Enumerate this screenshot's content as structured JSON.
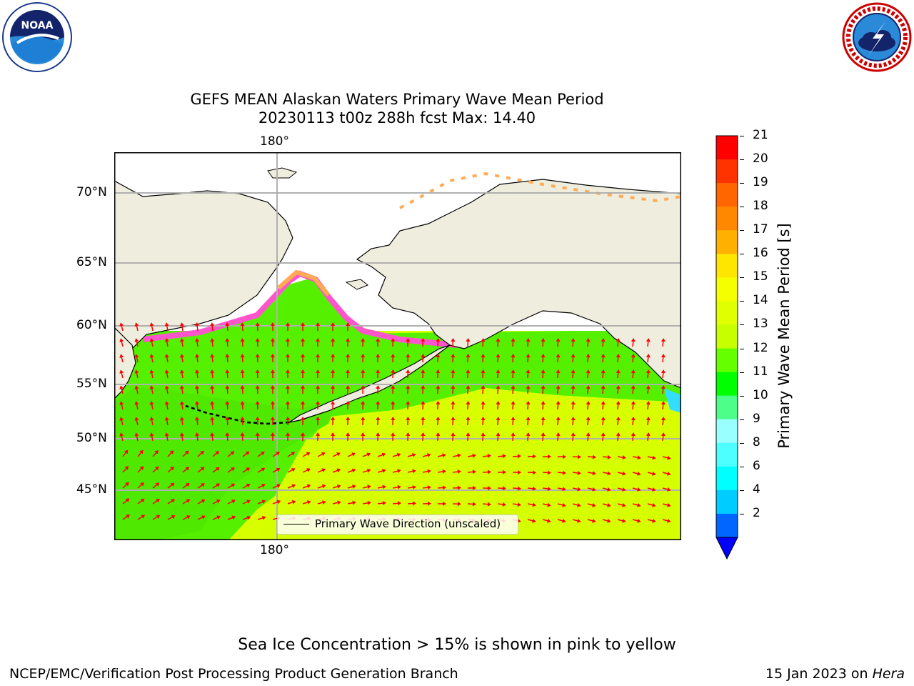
{
  "header": {
    "title_line1": "GEFS MEAN Alaskan Waters Primary Wave Mean Period",
    "title_line2": "20230113 t00z 288h fcst   Max: 14.40"
  },
  "logos": {
    "left": {
      "name": "NOAA",
      "text": "NOAA"
    },
    "right": {
      "name": "National Weather Service"
    }
  },
  "map": {
    "lon_labels": [
      "180°",
      "180°"
    ],
    "lat_labels": [
      "70°N",
      "65°N",
      "60°N",
      "55°N",
      "50°N",
      "45°N"
    ],
    "legend": "Primary Wave Direction (unscaled)",
    "colors": {
      "land": "#efedde",
      "sea_ice": "#ffffff",
      "arrow": "#ff0000",
      "grid": "#b0b0b0"
    }
  },
  "colorbar": {
    "title": "Primary Wave Mean Period [s]",
    "tick_labels": [
      "21",
      "20",
      "19",
      "18",
      "17",
      "16",
      "15",
      "14",
      "13",
      "12",
      "11",
      "10",
      "9",
      "8",
      "6",
      "4",
      "2"
    ],
    "segment_colors": [
      "#ff0000",
      "#ff3300",
      "#ff6600",
      "#ff8800",
      "#ffb000",
      "#ffe600",
      "#f5ff00",
      "#e0ff00",
      "#c8ff00",
      "#66ff00",
      "#00ff00",
      "#4dff88",
      "#99ffff",
      "#4dffff",
      "#00ffff",
      "#00ccff",
      "#0066ff"
    ],
    "underflow_color": "#0000ff"
  },
  "footer": {
    "note": "Sea Ice Concentration > 15% is shown in pink to yellow",
    "left": "NCEP/EMC/Verification Post Processing Product Generation Branch",
    "date": "15 Jan 2023 on ",
    "machine": "Hera"
  }
}
